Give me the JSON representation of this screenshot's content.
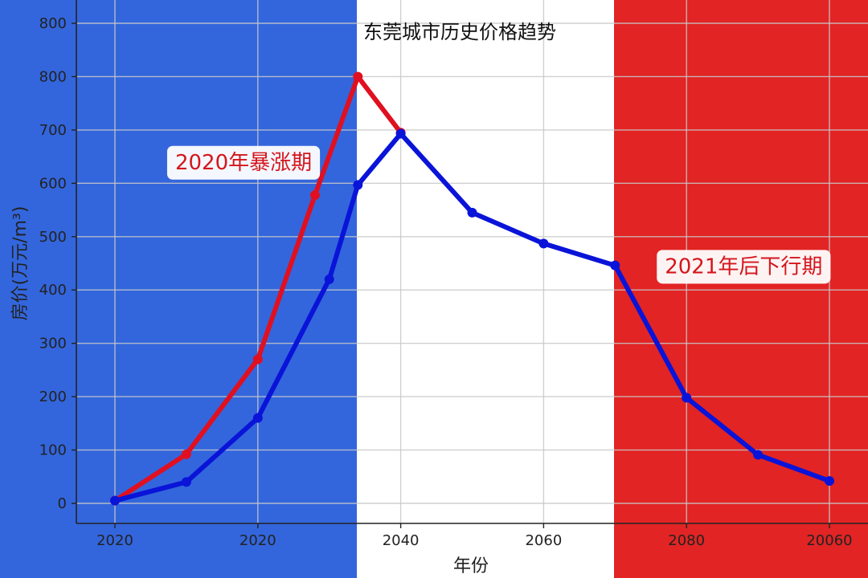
{
  "chart_data": {
    "type": "line",
    "title": "东莞城市历史价格趋势",
    "xlabel": "年份",
    "ylabel": "房价(万元/m³)",
    "x_tick_labels": [
      "2020",
      "2020",
      "2040",
      "2060",
      "2080",
      "20060"
    ],
    "y_tick_labels": [
      "0",
      "100",
      "200",
      "300",
      "400",
      "500",
      "600",
      "700",
      "800",
      "800"
    ],
    "grid": true,
    "background_bands": [
      {
        "name": "blue",
        "color": "#3366dd"
      },
      {
        "name": "white",
        "color": "#ffffff"
      },
      {
        "name": "red",
        "color": "#e22424"
      }
    ],
    "series": [
      {
        "color": "#e01020",
        "points": [
          {
            "x": 2010,
            "y": 5
          },
          {
            "x": 2015,
            "y": 92
          },
          {
            "x": 2020,
            "y": 270
          },
          {
            "x": 2024,
            "y": 578
          },
          {
            "x": 2027,
            "y": 800
          },
          {
            "x": 2030,
            "y": 695
          }
        ]
      },
      {
        "color": "#0a14d8",
        "points": [
          {
            "x": 2010,
            "y": 5
          },
          {
            "x": 2015,
            "y": 40
          },
          {
            "x": 2020,
            "y": 160
          },
          {
            "x": 2025,
            "y": 420
          },
          {
            "x": 2027,
            "y": 597
          },
          {
            "x": 2030,
            "y": 693
          },
          {
            "x": 2035,
            "y": 545
          },
          {
            "x": 2040,
            "y": 487
          },
          {
            "x": 2045,
            "y": 446
          },
          {
            "x": 2050,
            "y": 198
          },
          {
            "x": 2055,
            "y": 91
          },
          {
            "x": 2060,
            "y": 42
          }
        ]
      }
    ],
    "annotations": [
      {
        "text": "2020年暴涨期",
        "x": 2019,
        "y": 640
      },
      {
        "text": "2021年后下行期",
        "x": 2054,
        "y": 445
      }
    ]
  }
}
